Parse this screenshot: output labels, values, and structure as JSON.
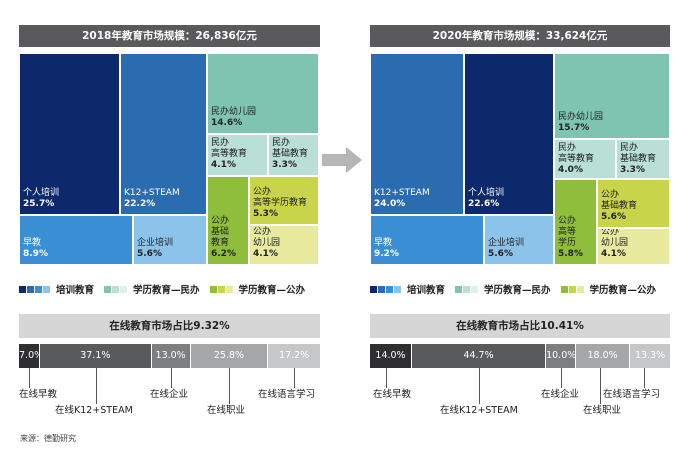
{
  "colors": {
    "pei_dark": "#0c2a6b",
    "pei_mid": "#2b6cb0",
    "pei_light": "#3a8fd4",
    "pei_pale": "#8cc3ea",
    "min_teal": "#7fc4b0",
    "min_pale": "#b9dfd6",
    "gong_green": "#8fbe3c",
    "gong_yellow": "#c8d44a",
    "gong_pale": "#e8ea9e",
    "header_bg": "#5a5a5c",
    "bar_dark": "#2f2f31",
    "bar_mid": "#595a5c",
    "bar_gray": "#7d7e80",
    "bar_light": "#a5a6a8",
    "bar_lighter": "#c6c7c9"
  },
  "left": {
    "header": "2018年教育市场规模：26,836亿元",
    "treemap": [
      {
        "name": "个人培训",
        "value": "25.7%"
      },
      {
        "name": "K12+STEAM",
        "value": "22.2%"
      },
      {
        "name": "早教",
        "value": "8.9%"
      },
      {
        "name": "企业培训",
        "value": "5.6%"
      },
      {
        "name": "民办幼儿园",
        "value": "14.6%"
      },
      {
        "name": "民办\n高等教育",
        "value": "4.1%"
      },
      {
        "name": "民办\n基础教育",
        "value": "3.3%"
      },
      {
        "name": "公办\n基础\n教育",
        "value": "6.2%"
      },
      {
        "name": "公办\n高等学历教育",
        "value": "5.3%"
      },
      {
        "name": "公办\n幼儿园",
        "value": "4.1%"
      }
    ],
    "online_header": "在线教育市场占比9.32%",
    "online_bar": [
      {
        "label": "在线早教",
        "value": "7.0%"
      },
      {
        "label": "在线K12+STEAM",
        "value": "37.1%"
      },
      {
        "label": "在线企业",
        "value": "13.0%"
      },
      {
        "label": "在线职业",
        "value": "25.8%"
      },
      {
        "label": "在线语言学习",
        "value": "17.2%"
      }
    ]
  },
  "right": {
    "header": "2020年教育市场规模：33,624亿元",
    "treemap": [
      {
        "name": "K12+STEAM",
        "value": "24.0%"
      },
      {
        "name": "个人培训",
        "value": "22.6%"
      },
      {
        "name": "早教",
        "value": "9.2%"
      },
      {
        "name": "企业培训",
        "value": "5.6%"
      },
      {
        "name": "民办幼儿园",
        "value": "15.7%"
      },
      {
        "name": "民办\n高等教育",
        "value": "4.0%"
      },
      {
        "name": "民办\n基础教育",
        "value": "3.3%"
      },
      {
        "name": "公办\n高等\n学历",
        "value": "5.8%"
      },
      {
        "name": "公办\n基础教育",
        "value": "5.6%"
      },
      {
        "name": "公办\n幼儿园",
        "value": "4.1%"
      }
    ],
    "online_header": "在线教育市场占比10.41%",
    "online_bar": [
      {
        "label": "在线早教",
        "value": "14.0%"
      },
      {
        "label": "在线K12+STEAM",
        "value": "44.7%"
      },
      {
        "label": "在线企业",
        "value": "10.0%"
      },
      {
        "label": "在线职业",
        "value": "18.0%"
      },
      {
        "label": "在线语言学习",
        "value": "13.3%"
      }
    ]
  },
  "legend": {
    "pei": "培训教育",
    "min": "学历教育—民办",
    "gong": "学历教育—公办"
  },
  "source": "来源：德勤研究",
  "chart_data": [
    {
      "type": "treemap",
      "title": "2018年教育市场规模：26,836亿元",
      "categories": [
        "个人培训",
        "K12+STEAM",
        "早教",
        "企业培训",
        "民办幼儿园",
        "民办高等教育",
        "民办基础教育",
        "公办基础教育",
        "公办高等学历教育",
        "公办幼儿园"
      ],
      "values": [
        25.7,
        22.2,
        8.9,
        5.6,
        14.6,
        4.1,
        3.3,
        6.2,
        5.3,
        4.1
      ]
    },
    {
      "type": "bar",
      "title": "在线教育市场占比9.32%",
      "categories": [
        "在线早教",
        "在线K12+STEAM",
        "在线企业",
        "在线职业",
        "在线语言学习"
      ],
      "values": [
        7.0,
        37.1,
        13.0,
        25.8,
        17.2
      ]
    },
    {
      "type": "treemap",
      "title": "2020年教育市场规模：33,624亿元",
      "categories": [
        "K12+STEAM",
        "个人培训",
        "早教",
        "企业培训",
        "民办幼儿园",
        "民办高等教育",
        "民办基础教育",
        "公办高等学历",
        "公办基础教育",
        "公办幼儿园"
      ],
      "values": [
        24.0,
        22.6,
        9.2,
        5.6,
        15.7,
        4.0,
        3.3,
        5.8,
        5.6,
        4.1
      ]
    },
    {
      "type": "bar",
      "title": "在线教育市场占比10.41%",
      "categories": [
        "在线早教",
        "在线K12+STEAM",
        "在线企业",
        "在线职业",
        "在线语言学习"
      ],
      "values": [
        14.0,
        44.7,
        10.0,
        18.0,
        13.3
      ]
    }
  ]
}
